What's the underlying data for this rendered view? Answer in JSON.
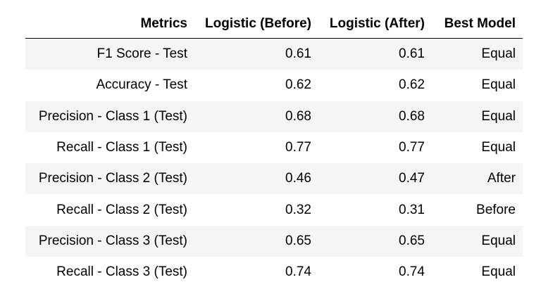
{
  "table": {
    "headers": [
      "Metrics",
      "Logistic (Before)",
      "Logistic (After)",
      "Best Model"
    ],
    "rows": [
      [
        "F1 Score - Test",
        "0.61",
        "0.61",
        "Equal"
      ],
      [
        "Accuracy - Test",
        "0.62",
        "0.62",
        "Equal"
      ],
      [
        "Precision - Class 1 (Test)",
        "0.68",
        "0.68",
        "Equal"
      ],
      [
        "Recall - Class 1 (Test)",
        "0.77",
        "0.77",
        "Equal"
      ],
      [
        "Precision - Class 2 (Test)",
        "0.46",
        "0.47",
        "After"
      ],
      [
        "Recall - Class 2 (Test)",
        "0.32",
        "0.31",
        "Before"
      ],
      [
        "Precision - Class 3 (Test)",
        "0.65",
        "0.65",
        "Equal"
      ],
      [
        "Recall - Class 3 (Test)",
        "0.74",
        "0.74",
        "Equal"
      ]
    ],
    "colors": {
      "stripe": "#f5f5f5",
      "background": "#ffffff",
      "text": "#000000"
    }
  }
}
